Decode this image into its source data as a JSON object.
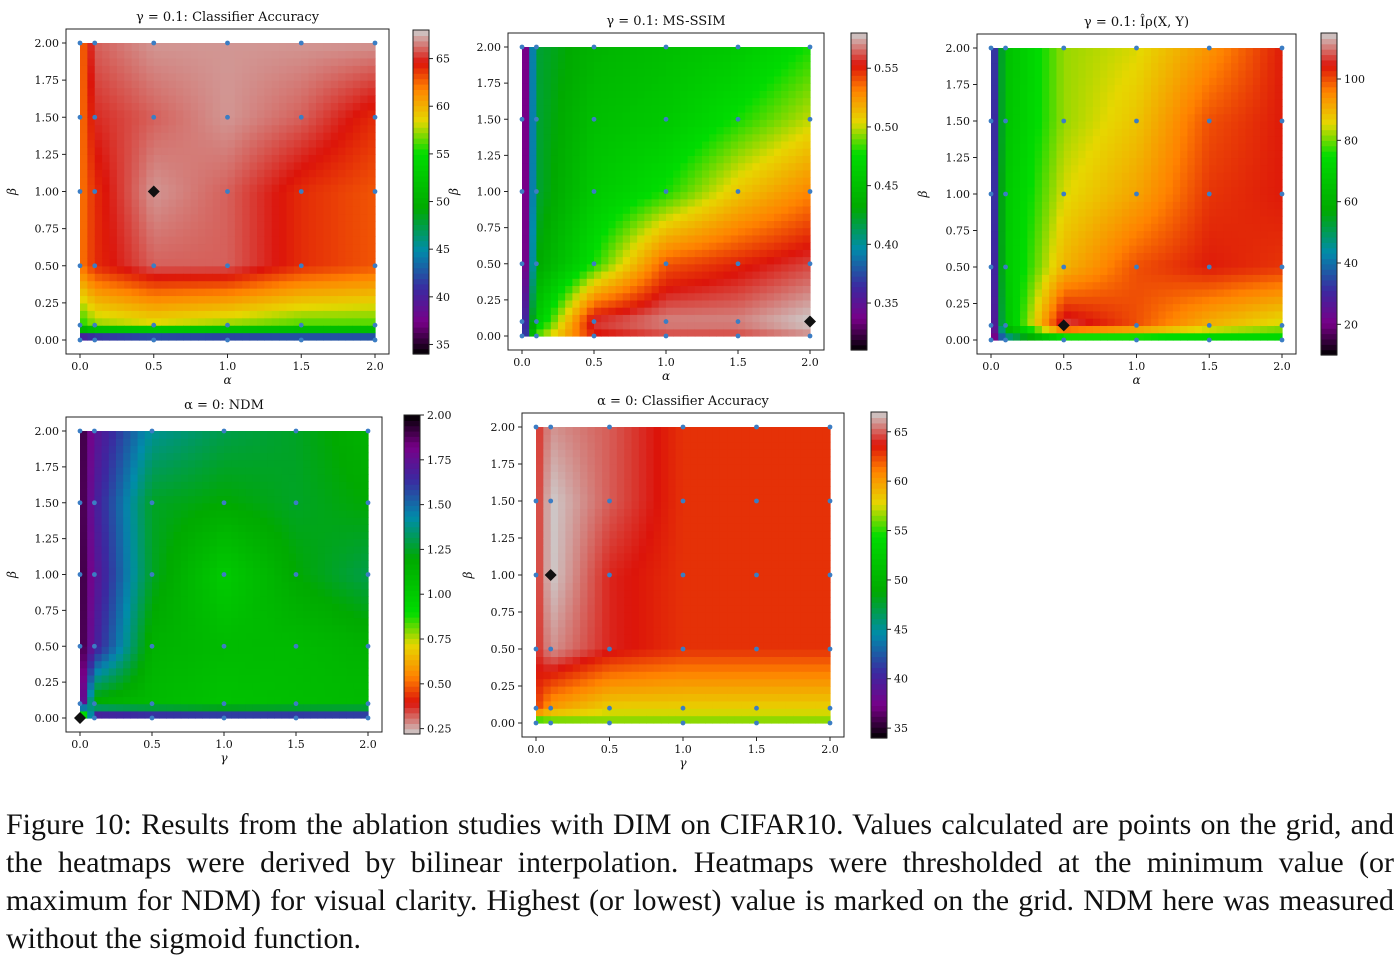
{
  "caption": "Figure 10: Results from the ablation studies with DIM on CIFAR10. Values calculated are points on the grid, and the heatmaps were derived by bilinear interpolation. Heatmaps were thresholded at the minimum value (or maximum for NDM) for visual clarity. Highest (or lowest) value is marked on the grid. NDM here was measured without the sigmoid function.",
  "chart_data": [
    {
      "type": "heatmap",
      "title": "γ = 0.1: Classifier Accuracy",
      "xlabel": "α",
      "ylabel": "β",
      "x": [
        0,
        0.1,
        0.5,
        1.0,
        1.5,
        2.0
      ],
      "y": [
        0,
        0.1,
        0.5,
        1.0,
        1.5,
        2.0
      ],
      "xticks": [
        "0.0",
        "0.5",
        "1.0",
        "1.5",
        "2.0"
      ],
      "yticks": [
        "0.00",
        "0.25",
        "0.50",
        "0.75",
        "1.00",
        "1.25",
        "1.50",
        "1.75",
        "2.00"
      ],
      "values": [
        [
          35,
          36,
          37,
          37,
          38,
          38
        ],
        [
          55,
          57,
          58,
          57,
          56,
          56
        ],
        [
          62,
          64,
          66,
          66,
          64,
          63
        ],
        [
          62,
          64,
          67,
          66,
          64,
          63
        ],
        [
          62,
          65,
          66,
          67,
          66,
          64
        ],
        [
          62,
          66,
          67,
          67,
          67,
          67
        ]
      ],
      "vmin": 34,
      "vmax": 68,
      "colorbar_ticks": [
        35,
        40,
        45,
        50,
        55,
        60,
        65
      ],
      "best": [
        0.5,
        1.0
      ]
    },
    {
      "type": "heatmap",
      "title": "γ = 0.1: MS-SSIM",
      "xlabel": "α",
      "ylabel": "β",
      "x": [
        0,
        0.1,
        0.5,
        1.0,
        1.5,
        2.0
      ],
      "y": [
        0,
        0.1,
        0.5,
        1.0,
        1.5,
        2.0
      ],
      "xticks": [
        "0.0",
        "0.5",
        "1.0",
        "1.5",
        "2.0"
      ],
      "yticks": [
        "0.00",
        "0.25",
        "0.50",
        "0.75",
        "1.00",
        "1.25",
        "1.50",
        "1.75",
        "2.00"
      ],
      "values": [
        [
          0.33,
          0.49,
          0.55,
          0.56,
          0.56,
          0.57
        ],
        [
          0.33,
          0.46,
          0.56,
          0.57,
          0.57,
          0.58
        ],
        [
          0.31,
          0.43,
          0.48,
          0.54,
          0.55,
          0.56
        ],
        [
          0.31,
          0.42,
          0.46,
          0.48,
          0.51,
          0.53
        ],
        [
          0.31,
          0.42,
          0.45,
          0.46,
          0.48,
          0.5
        ],
        [
          0.31,
          0.42,
          0.44,
          0.45,
          0.46,
          0.48
        ]
      ],
      "vmin": 0.31,
      "vmax": 0.58,
      "colorbar_ticks": [
        0.35,
        0.4,
        0.45,
        0.5,
        0.55
      ],
      "colorbar_ticklabels": [
        "0.35",
        "0.40",
        "0.45",
        "0.50",
        "0.55"
      ],
      "best": [
        2.0,
        0.1
      ]
    },
    {
      "type": "heatmap",
      "title": "γ = 0.1: Îρ(X, Y)",
      "xlabel": "α",
      "ylabel": "β",
      "x": [
        0,
        0.1,
        0.5,
        1.0,
        1.5,
        2.0
      ],
      "y": [
        0,
        0.1,
        0.5,
        1.0,
        1.5,
        2.0
      ],
      "xticks": [
        "0.0",
        "0.5",
        "1.0",
        "1.5",
        "2.0"
      ],
      "yticks": [
        "0.00",
        "0.25",
        "0.50",
        "0.75",
        "1.00",
        "1.25",
        "1.50",
        "1.75",
        "2.00"
      ],
      "values": [
        [
          12,
          40,
          65,
          68,
          68,
          70
        ],
        [
          15,
          65,
          108,
          100,
          90,
          84
        ],
        [
          18,
          68,
          90,
          100,
          104,
          102
        ],
        [
          20,
          68,
          85,
          92,
          102,
          104
        ],
        [
          20,
          66,
          82,
          88,
          100,
          104
        ],
        [
          22,
          65,
          82,
          85,
          94,
          104
        ]
      ],
      "vmin": 10,
      "vmax": 115,
      "colorbar_ticks": [
        20,
        40,
        60,
        80,
        100
      ],
      "best": [
        0.5,
        0.1
      ]
    },
    {
      "type": "heatmap",
      "title": "α = 0: NDM",
      "xlabel": "γ",
      "ylabel": "β",
      "x": [
        0,
        0.1,
        0.5,
        1.0,
        1.5,
        2.0
      ],
      "y": [
        0,
        0.1,
        0.5,
        1.0,
        1.5,
        2.0
      ],
      "xticks": [
        "0.0",
        "0.5",
        "1.0",
        "1.5",
        "2.0"
      ],
      "yticks": [
        "0.00",
        "0.25",
        "0.50",
        "0.75",
        "1.00",
        "1.25",
        "1.50",
        "1.75",
        "2.00"
      ],
      "values": [
        [
          0.22,
          1.85,
          1.8,
          1.78,
          1.78,
          1.76
        ],
        [
          1.95,
          1.15,
          1.1,
          1.05,
          1.08,
          1.1
        ],
        [
          1.95,
          1.7,
          1.15,
          1.1,
          1.1,
          1.15
        ],
        [
          1.95,
          1.75,
          1.25,
          1.0,
          1.2,
          1.3
        ],
        [
          1.95,
          1.7,
          1.25,
          1.2,
          1.25,
          1.2
        ],
        [
          1.95,
          1.75,
          1.4,
          1.3,
          1.25,
          1.15
        ]
      ],
      "vmin": 0.22,
      "vmax": 2.0,
      "reverse": true,
      "colorbar_ticks": [
        0.25,
        0.5,
        0.75,
        1.0,
        1.25,
        1.5,
        1.75,
        2.0
      ],
      "colorbar_ticklabels": [
        "0.25",
        "0.50",
        "0.75",
        "1.00",
        "1.25",
        "1.50",
        "1.75",
        "2.00"
      ],
      "best": [
        0.0,
        0.0
      ]
    },
    {
      "type": "heatmap",
      "title": "α = 0: Classifier Accuracy",
      "xlabel": "γ",
      "ylabel": "β",
      "x": [
        0,
        0.1,
        0.5,
        1.0,
        1.5,
        2.0
      ],
      "y": [
        0,
        0.1,
        0.5,
        1.0,
        1.5,
        2.0
      ],
      "xticks": [
        "0.0",
        "0.5",
        "1.0",
        "1.5",
        "2.0"
      ],
      "yticks": [
        "0.00",
        "0.25",
        "0.50",
        "0.75",
        "1.00",
        "1.25",
        "1.50",
        "1.75",
        "2.00"
      ],
      "values": [
        [
          53,
          55,
          56,
          56,
          56,
          56
        ],
        [
          63,
          60,
          58,
          58,
          58,
          58
        ],
        [
          64,
          66,
          64,
          63,
          63,
          63
        ],
        [
          64,
          67,
          64,
          63,
          63,
          63
        ],
        [
          64,
          67,
          65,
          63,
          63,
          63
        ],
        [
          64,
          66,
          65,
          63,
          63,
          63
        ]
      ],
      "vmin": 34,
      "vmax": 67,
      "colorbar_ticks": [
        35,
        40,
        45,
        50,
        55,
        60,
        65
      ],
      "best": [
        0.1,
        1.0
      ]
    }
  ]
}
